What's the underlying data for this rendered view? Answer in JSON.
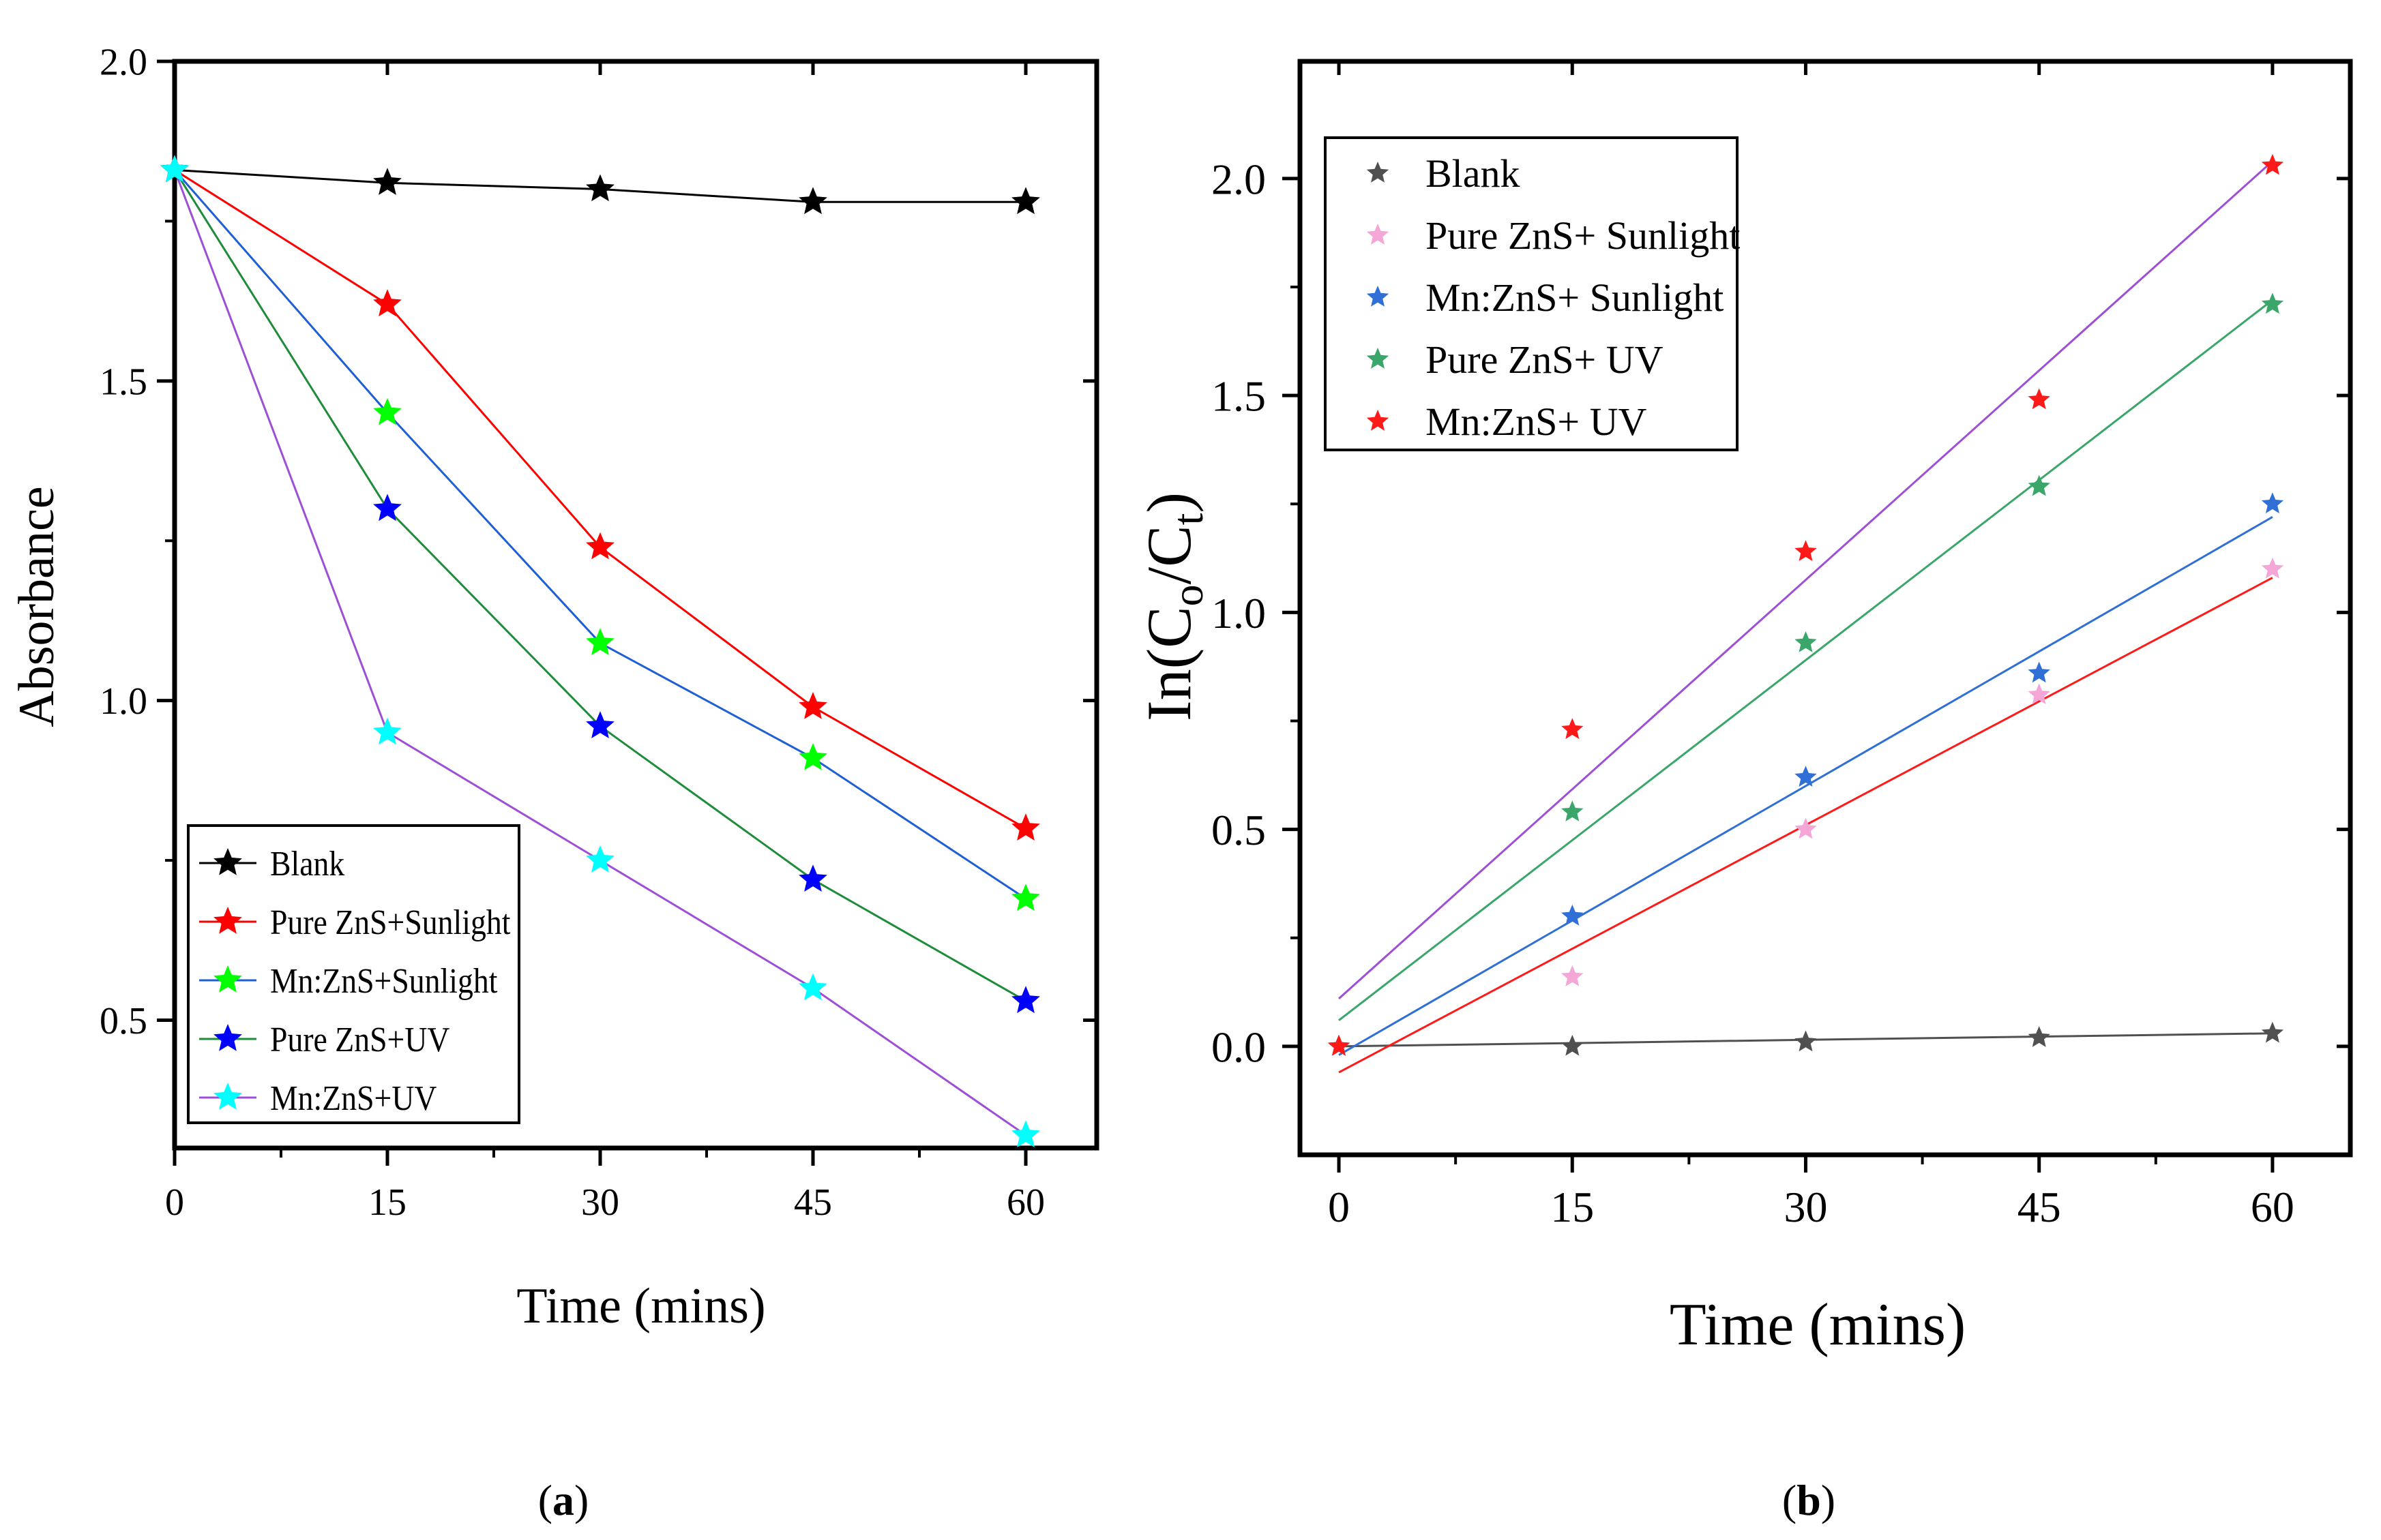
{
  "chart_data": [
    {
      "id": "a",
      "type": "line",
      "caption_label": "a",
      "title": "",
      "xlabel": "Time (mins)",
      "ylabel": "Absorbance",
      "xlim": [
        0,
        65
      ],
      "ylim": [
        0.3,
        2.0
      ],
      "xticks": [
        0,
        15,
        30,
        45,
        60
      ],
      "xtick_labels": [
        "0",
        "15",
        "30",
        "45",
        "60"
      ],
      "yticks": [
        0.5,
        1.0,
        1.5,
        2.0
      ],
      "ytick_labels": [
        "0.5",
        "1.0",
        "1.5",
        "2.0"
      ],
      "grid": false,
      "legend_position": "bottom-left",
      "series": [
        {
          "name": "Blank",
          "color": "#000000",
          "line_color": "#000000",
          "x": [
            0,
            15,
            30,
            45,
            60
          ],
          "values": [
            1.83,
            1.81,
            1.8,
            1.78,
            1.78
          ]
        },
        {
          "name": "Pure ZnS+Sunlight",
          "color": "#ff0000",
          "line_color": "#ff0000",
          "x": [
            0,
            15,
            30,
            45,
            60
          ],
          "values": [
            1.83,
            1.62,
            1.24,
            0.99,
            0.8
          ]
        },
        {
          "name": "Mn:ZnS+Sunlight",
          "color": "#00ff00",
          "line_color": "#1f5fd6",
          "x": [
            0,
            15,
            30,
            45,
            60
          ],
          "values": [
            1.83,
            1.45,
            1.09,
            0.91,
            0.69
          ]
        },
        {
          "name": "Pure ZnS+UV",
          "color": "#0000ff",
          "line_color": "#1e8c3a",
          "x": [
            0,
            15,
            30,
            45,
            60
          ],
          "values": [
            1.83,
            1.3,
            0.96,
            0.72,
            0.53
          ]
        },
        {
          "name": "Mn:ZnS+UV",
          "color": "#00ffff",
          "line_color": "#9d4fd6",
          "x": [
            0,
            15,
            30,
            45,
            60
          ],
          "values": [
            1.83,
            0.95,
            0.75,
            0.55,
            0.32
          ]
        }
      ]
    },
    {
      "id": "b",
      "type": "scatter",
      "caption_label": "b",
      "title": "",
      "xlabel": "Time (mins)",
      "ylabel_parts": [
        "In(C",
        "o",
        "/C",
        "t",
        ")"
      ],
      "xlim": [
        -2.5,
        65
      ],
      "ylim": [
        -0.25,
        2.27
      ],
      "xticks": [
        0,
        15,
        30,
        45,
        60
      ],
      "xtick_labels": [
        "0",
        "15",
        "30",
        "45",
        "60"
      ],
      "yticks": [
        0.0,
        0.5,
        1.0,
        1.5,
        2.0
      ],
      "ytick_labels": [
        "0.0",
        "0.5",
        "1.0",
        "1.5",
        "2.0"
      ],
      "grid": false,
      "legend_position": "top-left",
      "series": [
        {
          "name": "Blank",
          "color": "#505050",
          "x": [
            0,
            15,
            30,
            45,
            60
          ],
          "values": [
            0.0,
            0.0,
            0.01,
            0.02,
            0.03
          ],
          "fit": [
            0.0,
            0.03
          ]
        },
        {
          "name": "Pure ZnS+ Sunlight",
          "color": "#f4a6d7",
          "x": [
            0,
            15,
            30,
            45,
            60
          ],
          "values": [
            0.0,
            0.16,
            0.5,
            0.81,
            1.1
          ],
          "fit": [
            -0.06,
            1.08
          ]
        },
        {
          "name": "Mn:ZnS+ Sunlight",
          "color": "#2f6fd6",
          "x": [
            0,
            15,
            30,
            45,
            60
          ],
          "values": [
            0.0,
            0.3,
            0.62,
            0.86,
            1.25
          ],
          "fit": [
            -0.02,
            1.22
          ]
        },
        {
          "name": "Pure ZnS+ UV",
          "color": "#3aa66a",
          "x": [
            0,
            15,
            30,
            45,
            60
          ],
          "values": [
            0.0,
            0.54,
            0.93,
            1.29,
            1.71
          ],
          "fit": [
            0.06,
            1.72
          ]
        },
        {
          "name": "Mn:ZnS+ UV",
          "color": "#ff1a1a",
          "x": [
            0,
            15,
            30,
            45,
            60
          ],
          "values": [
            0.0,
            0.73,
            1.14,
            1.49,
            2.03
          ],
          "fit": [
            0.11,
            2.04
          ]
        }
      ],
      "fit_line_colors": [
        "#505050",
        "#ff1a1a",
        "#2f6fd6",
        "#3aa66a",
        "#9d4fd6"
      ]
    }
  ]
}
